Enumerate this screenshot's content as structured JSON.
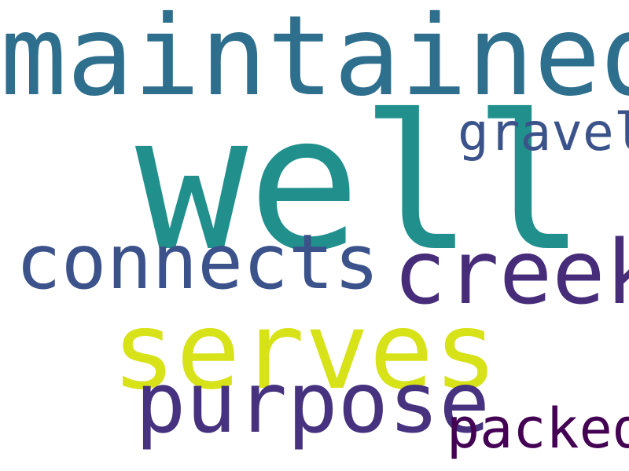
{
  "words": {
    "maintained": {
      "text": "maintained",
      "color": "#2f6f8e"
    },
    "well": {
      "text": "well",
      "color": "#21908d"
    },
    "gravel": {
      "text": "gravel",
      "color": "#3b538b"
    },
    "connects": {
      "text": "connects",
      "color": "#3b528b"
    },
    "creek": {
      "text": "creek",
      "color": "#472c7a"
    },
    "serves": {
      "text": "serves",
      "color": "#d8e219"
    },
    "purpose": {
      "text": "purpose",
      "color": "#46327e"
    },
    "packed": {
      "text": "packed",
      "color": "#440154"
    }
  }
}
